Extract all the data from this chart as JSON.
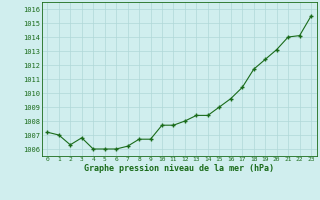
{
  "x": [
    0,
    1,
    2,
    3,
    4,
    5,
    6,
    7,
    8,
    9,
    10,
    11,
    12,
    13,
    14,
    15,
    16,
    17,
    18,
    19,
    20,
    21,
    22,
    23
  ],
  "y": [
    1007.2,
    1007.0,
    1006.3,
    1006.8,
    1006.0,
    1006.0,
    1006.0,
    1006.2,
    1006.7,
    1006.7,
    1007.7,
    1007.7,
    1008.0,
    1008.4,
    1008.4,
    1009.0,
    1009.6,
    1010.4,
    1011.7,
    1012.4,
    1013.1,
    1014.0,
    1014.1,
    1015.5
  ],
  "line_color": "#1a6b1a",
  "marker_color": "#1a6b1a",
  "bg_color": "#d0eeee",
  "grid_color": "#b0d8d8",
  "xlabel": "Graphe pression niveau de la mer (hPa)",
  "xlabel_color": "#1a6b1a",
  "tick_color": "#1a6b1a",
  "ylim": [
    1005.5,
    1016.5
  ],
  "yticks": [
    1006,
    1007,
    1008,
    1009,
    1010,
    1011,
    1012,
    1013,
    1014,
    1015,
    1016
  ],
  "xticks": [
    0,
    1,
    2,
    3,
    4,
    5,
    6,
    7,
    8,
    9,
    10,
    11,
    12,
    13,
    14,
    15,
    16,
    17,
    18,
    19,
    20,
    21,
    22,
    23
  ],
  "figsize": [
    3.2,
    2.0
  ],
  "dpi": 100
}
